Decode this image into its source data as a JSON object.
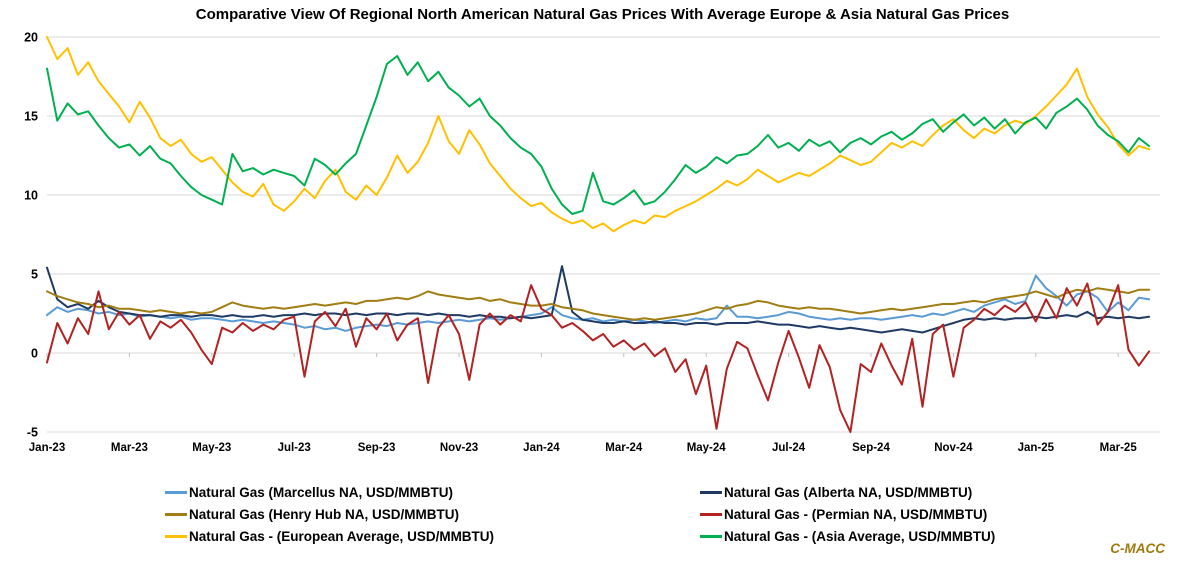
{
  "title": "Comparative View Of Regional North American Natural Gas Prices With Average Europe & Asia Natural Gas Prices",
  "watermark": "C-MACC",
  "chart_data": {
    "type": "line",
    "title": "Comparative View Of Regional North American Natural Gas Prices With Average Europe & Asia Natural Gas Prices",
    "xlabel": "",
    "ylabel": "",
    "ylim": [
      -5,
      20
    ],
    "grid": true,
    "legend_position": "bottom",
    "x_unit": "months since Jan-2023",
    "x_step": 0.25,
    "y_ticks": [
      20,
      15,
      10,
      5,
      0,
      -5
    ],
    "x_ticks": {
      "positions": [
        0,
        2,
        4,
        6,
        8,
        10,
        12,
        14,
        16,
        18,
        20,
        22,
        24,
        26
      ],
      "labels": [
        "Jan-23",
        "Mar-23",
        "May-23",
        "Jul-23",
        "Sep-23",
        "Nov-23",
        "Jan-24",
        "Mar-24",
        "May-24",
        "Jul-24",
        "Sep-24",
        "Nov-24",
        "Jan-25",
        "Mar-25"
      ]
    },
    "series": [
      {
        "id": "marcellus",
        "name": "Natural Gas (Marcellus NA, USD/MMBTU)",
        "color": "#5B9BD5",
        "values": [
          2.4,
          2.9,
          2.6,
          2.8,
          2.7,
          2.5,
          2.6,
          2.4,
          2.5,
          2.3,
          2.4,
          2.3,
          2.2,
          2.3,
          2.1,
          2.2,
          2.2,
          2.1,
          2.0,
          2.1,
          2.0,
          1.9,
          2.0,
          1.9,
          1.8,
          1.6,
          1.7,
          1.5,
          1.6,
          1.4,
          1.6,
          1.7,
          1.8,
          1.7,
          1.9,
          1.8,
          1.9,
          2.0,
          1.9,
          2.0,
          2.1,
          2.0,
          2.1,
          2.2,
          2.1,
          2.2,
          2.3,
          2.4,
          2.5,
          2.9,
          2.4,
          2.2,
          2.1,
          2.2,
          2.0,
          2.1,
          2.0,
          2.1,
          2.0,
          1.9,
          2.0,
          2.1,
          2.0,
          2.2,
          2.1,
          2.2,
          3.0,
          2.3,
          2.3,
          2.2,
          2.3,
          2.4,
          2.6,
          2.5,
          2.3,
          2.2,
          2.1,
          2.2,
          2.1,
          2.2,
          2.2,
          2.1,
          2.2,
          2.3,
          2.4,
          2.3,
          2.5,
          2.4,
          2.6,
          2.8,
          2.6,
          3.0,
          3.2,
          3.4,
          3.1,
          3.3,
          4.9,
          4.1,
          3.6,
          3.0,
          3.7,
          3.9,
          3.5,
          2.6,
          3.2,
          2.7,
          3.5,
          3.4
        ]
      },
      {
        "id": "alberta",
        "name": "Natural Gas (Alberta NA, USD/MMBTU)",
        "color": "#1F3B63",
        "values": [
          5.4,
          3.4,
          2.9,
          3.1,
          2.8,
          3.3,
          2.9,
          2.6,
          2.5,
          2.4,
          2.4,
          2.3,
          2.4,
          2.4,
          2.3,
          2.4,
          2.4,
          2.3,
          2.4,
          2.3,
          2.3,
          2.4,
          2.3,
          2.4,
          2.4,
          2.5,
          2.4,
          2.5,
          2.5,
          2.4,
          2.5,
          2.4,
          2.5,
          2.5,
          2.4,
          2.5,
          2.5,
          2.4,
          2.5,
          2.4,
          2.4,
          2.3,
          2.4,
          2.3,
          2.3,
          2.2,
          2.3,
          2.2,
          2.3,
          2.4,
          5.5,
          2.6,
          2.1,
          2.0,
          1.9,
          1.9,
          2.0,
          1.9,
          1.9,
          2.0,
          1.9,
          1.9,
          1.8,
          1.9,
          1.9,
          1.8,
          1.9,
          1.9,
          1.9,
          2.0,
          1.9,
          1.8,
          1.8,
          1.7,
          1.6,
          1.7,
          1.6,
          1.5,
          1.6,
          1.5,
          1.4,
          1.3,
          1.4,
          1.5,
          1.4,
          1.3,
          1.5,
          1.7,
          1.9,
          2.1,
          2.2,
          2.1,
          2.2,
          2.1,
          2.2,
          2.2,
          2.3,
          2.2,
          2.3,
          2.4,
          2.3,
          2.6,
          2.2,
          2.3,
          2.2,
          2.3,
          2.2,
          2.3
        ]
      },
      {
        "id": "henryhub",
        "name": "Natural Gas (Henry Hub NA, USD/MMBTU)",
        "color": "#A07E14",
        "values": [
          3.9,
          3.6,
          3.4,
          3.2,
          3.1,
          2.9,
          3.0,
          2.8,
          2.8,
          2.7,
          2.6,
          2.7,
          2.6,
          2.5,
          2.6,
          2.5,
          2.6,
          2.9,
          3.2,
          3.0,
          2.9,
          2.8,
          2.9,
          2.8,
          2.9,
          3.0,
          3.1,
          3.0,
          3.1,
          3.2,
          3.1,
          3.3,
          3.3,
          3.4,
          3.5,
          3.4,
          3.6,
          3.9,
          3.7,
          3.6,
          3.5,
          3.4,
          3.5,
          3.3,
          3.4,
          3.2,
          3.1,
          3.0,
          3.0,
          3.1,
          2.9,
          2.8,
          2.7,
          2.5,
          2.4,
          2.3,
          2.2,
          2.1,
          2.2,
          2.1,
          2.2,
          2.3,
          2.4,
          2.5,
          2.7,
          2.9,
          2.8,
          3.0,
          3.1,
          3.3,
          3.2,
          3.0,
          2.9,
          2.8,
          2.9,
          2.8,
          2.8,
          2.7,
          2.6,
          2.5,
          2.6,
          2.7,
          2.8,
          2.7,
          2.8,
          2.9,
          3.0,
          3.1,
          3.1,
          3.2,
          3.3,
          3.2,
          3.4,
          3.5,
          3.6,
          3.7,
          3.9,
          3.7,
          3.5,
          3.8,
          4.0,
          3.9,
          4.1,
          4.0,
          3.9,
          3.8,
          4.0,
          4.0
        ]
      },
      {
        "id": "permian",
        "name": "Natural Gas - (Permian NA, USD/MMBTU)",
        "color": "#B22222",
        "values": [
          -0.6,
          1.9,
          0.6,
          2.2,
          1.2,
          3.9,
          1.5,
          2.6,
          1.8,
          2.4,
          0.9,
          2.0,
          1.6,
          2.1,
          1.3,
          0.2,
          -0.7,
          1.6,
          1.3,
          1.9,
          1.4,
          1.8,
          1.5,
          2.1,
          2.3,
          -1.5,
          2.0,
          2.6,
          1.7,
          2.8,
          0.4,
          2.2,
          1.5,
          2.5,
          0.8,
          1.8,
          2.2,
          -1.9,
          1.6,
          2.4,
          1.2,
          -1.7,
          1.8,
          2.5,
          1.8,
          2.4,
          2.0,
          4.3,
          2.8,
          2.4,
          1.6,
          1.9,
          1.4,
          0.8,
          1.2,
          0.4,
          0.8,
          0.2,
          0.6,
          -0.2,
          0.3,
          -1.2,
          -0.4,
          -2.6,
          -0.8,
          -4.8,
          -1.0,
          0.7,
          0.3,
          -1.4,
          -3.0,
          -0.6,
          1.4,
          -0.3,
          -2.2,
          0.5,
          -0.9,
          -3.6,
          -5.0,
          -0.7,
          -1.2,
          0.6,
          -0.8,
          -2.0,
          0.9,
          -3.4,
          1.2,
          1.8,
          -1.5,
          1.6,
          2.1,
          2.8,
          2.4,
          3.0,
          2.6,
          3.2,
          2.0,
          3.4,
          2.2,
          4.1,
          3.0,
          4.4,
          1.8,
          2.6,
          4.3,
          0.2,
          -0.8,
          0.1
        ]
      },
      {
        "id": "european",
        "name": "Natural Gas - (European Average, USD/MMBTU)",
        "color": "#FFC000",
        "values": [
          20.0,
          18.6,
          19.3,
          17.6,
          18.4,
          17.2,
          16.4,
          15.6,
          14.6,
          15.9,
          14.9,
          13.6,
          13.1,
          13.5,
          12.6,
          12.1,
          12.4,
          11.6,
          10.8,
          10.2,
          9.9,
          10.7,
          9.4,
          9.0,
          9.6,
          10.4,
          9.8,
          10.9,
          11.6,
          10.2,
          9.7,
          10.6,
          10.0,
          11.1,
          12.5,
          11.4,
          12.1,
          13.3,
          15.0,
          13.4,
          12.6,
          14.1,
          13.2,
          12.0,
          11.2,
          10.4,
          9.8,
          9.3,
          9.5,
          8.9,
          8.5,
          8.2,
          8.4,
          7.9,
          8.2,
          7.7,
          8.1,
          8.4,
          8.2,
          8.7,
          8.6,
          9.0,
          9.3,
          9.6,
          10.0,
          10.4,
          10.9,
          10.6,
          11.0,
          11.6,
          11.2,
          10.8,
          11.1,
          11.4,
          11.2,
          11.6,
          12.0,
          12.5,
          12.2,
          11.9,
          12.1,
          12.7,
          13.3,
          13.0,
          13.4,
          13.1,
          13.8,
          14.4,
          14.8,
          14.1,
          13.6,
          14.2,
          13.9,
          14.4,
          14.7,
          14.5,
          15.0,
          15.6,
          16.3,
          17.0,
          18.0,
          16.2,
          15.1,
          14.3,
          13.2,
          12.5,
          13.1,
          12.9
        ]
      },
      {
        "id": "asia",
        "name": "Natural Gas - (Asia Average, USD/MMBTU)",
        "color": "#00B050",
        "values": [
          18.0,
          14.7,
          15.8,
          15.1,
          15.3,
          14.4,
          13.6,
          13.0,
          13.2,
          12.5,
          13.1,
          12.3,
          12.0,
          11.2,
          10.5,
          10.0,
          9.7,
          9.4,
          12.6,
          11.5,
          11.7,
          11.3,
          11.6,
          11.4,
          11.2,
          10.6,
          12.3,
          11.9,
          11.3,
          12.0,
          12.6,
          14.4,
          16.2,
          18.3,
          18.8,
          17.6,
          18.4,
          17.2,
          17.8,
          16.8,
          16.3,
          15.6,
          16.1,
          15.0,
          14.4,
          13.6,
          13.0,
          12.6,
          11.8,
          10.4,
          9.4,
          8.8,
          9.0,
          11.4,
          9.6,
          9.4,
          9.8,
          10.3,
          9.4,
          9.6,
          10.2,
          11.0,
          11.9,
          11.4,
          11.8,
          12.4,
          12.0,
          12.5,
          12.6,
          13.1,
          13.8,
          13.0,
          13.3,
          12.8,
          13.5,
          13.1,
          13.4,
          12.7,
          13.3,
          13.6,
          13.2,
          13.7,
          14.0,
          13.5,
          13.9,
          14.5,
          14.8,
          14.0,
          14.6,
          15.1,
          14.4,
          14.9,
          14.2,
          14.8,
          13.9,
          14.6,
          14.9,
          14.2,
          15.2,
          15.6,
          16.1,
          15.4,
          14.4,
          13.8,
          13.4,
          12.7,
          13.6,
          13.1
        ]
      }
    ],
    "style": {
      "gridline_color": "#D9D9D9",
      "tick_color": "#BFBFBF",
      "label_color": "#000000",
      "watermark_color": "#A0790F"
    }
  }
}
